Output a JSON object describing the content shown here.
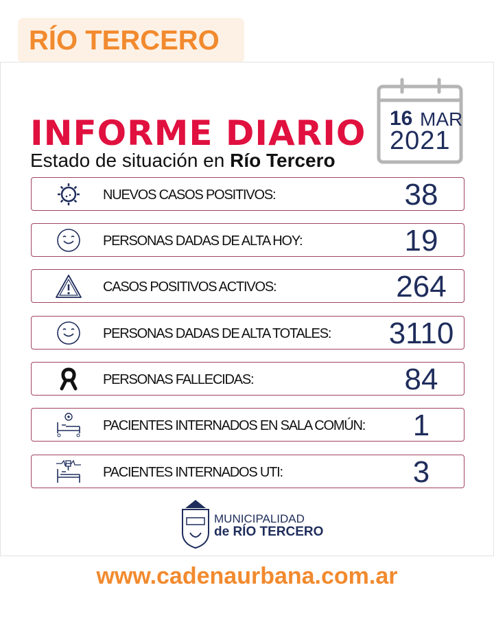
{
  "header": {
    "tag": "RÍO TERCERO"
  },
  "report": {
    "title": "INFORME DIARIO",
    "subtitle_prefix": "Estado de situación en ",
    "subtitle_bold": "Río Tercero"
  },
  "date": {
    "day": "16",
    "month": "MAR",
    "year": "2021"
  },
  "rows": [
    {
      "icon": "virus-icon",
      "label": "NUEVOS CASOS POSITIVOS:",
      "value": "38"
    },
    {
      "icon": "smiley-icon",
      "label": "PERSONAS DADAS DE ALTA HOY:",
      "value": "19"
    },
    {
      "icon": "warning-icon",
      "label": "CASOS POSITIVOS ACTIVOS:",
      "value": "264"
    },
    {
      "icon": "smiley-icon",
      "label": "PERSONAS DADAS DE ALTA TOTALES:",
      "value": "3110"
    },
    {
      "icon": "mourning-ribbon-icon",
      "label": "PERSONAS FALLECIDAS:",
      "value": "84"
    },
    {
      "icon": "hospital-bed-icon",
      "label": "PACIENTES INTERNADOS EN SALA COMÚN:",
      "value": "1"
    },
    {
      "icon": "icu-bed-icon",
      "label": "PACIENTES INTERNADOS UTI:",
      "value": "3"
    }
  ],
  "logo": {
    "line1": "MUNICIPALIDAD",
    "line2": "de RÍO TERCERO"
  },
  "footer": {
    "url": "www.cadenaurbana.com.ar"
  },
  "colors": {
    "orange": "#f28a2e",
    "red": "#e0103f",
    "navy": "#1f2d5c",
    "border": "#a0435e"
  }
}
